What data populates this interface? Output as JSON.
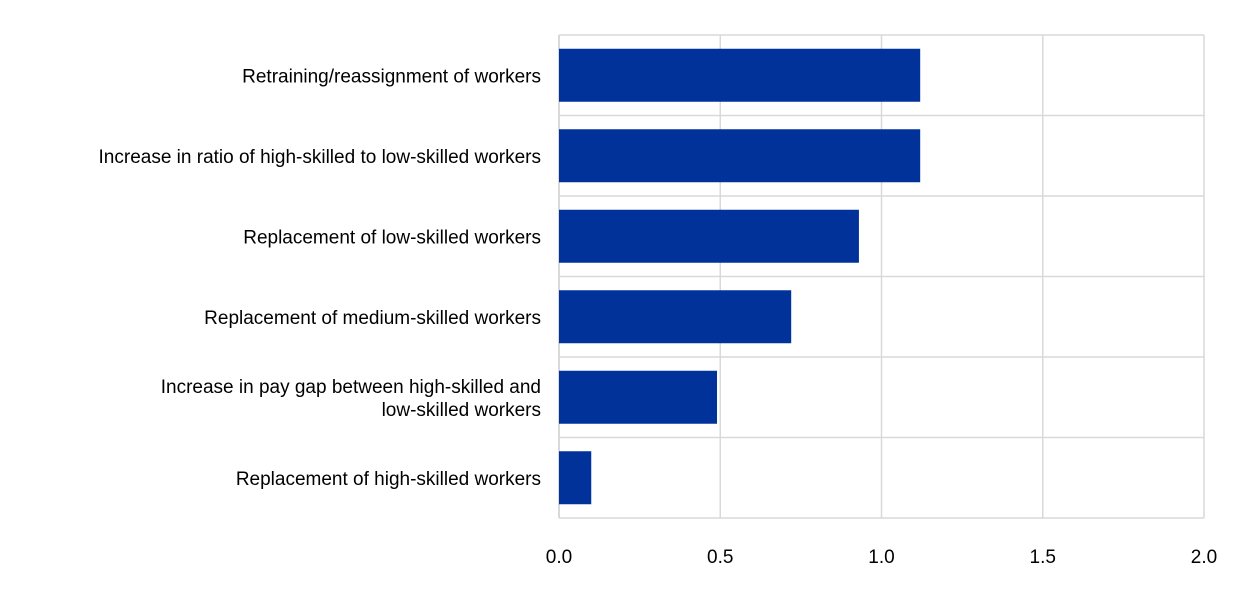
{
  "chart_data": {
    "type": "bar",
    "orientation": "horizontal",
    "title": "",
    "xlabel": "",
    "ylabel": "",
    "categories": [
      [
        "Retraining/reassignment of workers"
      ],
      [
        "Increase in ratio of high-skilled to low-skilled workers"
      ],
      [
        "Replacement of low-skilled workers"
      ],
      [
        "Replacement of medium-skilled workers"
      ],
      [
        "Increase in pay gap between high-skilled and",
        "low-skilled workers"
      ],
      [
        "Replacement of high-skilled workers"
      ]
    ],
    "values": [
      1.12,
      1.12,
      0.93,
      0.72,
      0.49,
      0.1
    ],
    "xlim": [
      0,
      2.0
    ],
    "xticks": [
      "0.0",
      "0.5",
      "1.0",
      "1.5",
      "2.0"
    ],
    "grid": true,
    "bar_color": "#003299",
    "grid_color": "#d9d9d9"
  }
}
